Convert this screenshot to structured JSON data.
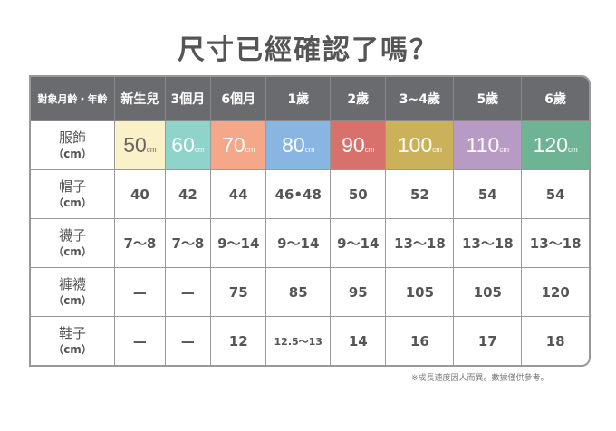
{
  "title": "尺寸已經確認了嗎？",
  "header": [
    "對象月齡・年齡",
    "新生兒",
    "3個月",
    "6個月",
    "1歲",
    "2歲",
    "3~4歲",
    "5歲",
    "6歲"
  ],
  "clothing": {
    "label": "服飾",
    "unit": "（cm）",
    "sizes": [
      "50",
      "60",
      "70",
      "80",
      "90",
      "100",
      "110",
      "120"
    ],
    "size_unit": "cm",
    "colors": [
      "#fbf1c9",
      "#8fd3cb",
      "#f5a78a",
      "#89b5e2",
      "#d8716b",
      "#cbb25a",
      "#b89bc4",
      "#6db394"
    ]
  },
  "rows": [
    {
      "label": "帽子",
      "unit": "（cm）",
      "values": [
        "40",
        "42",
        "44",
        "46•48",
        "50",
        "52",
        "54",
        "54"
      ]
    },
    {
      "label": "襪子",
      "unit": "（cm）",
      "values": [
        "7～8",
        "7～8",
        "9～14",
        "9～14",
        "9～14",
        "13～18",
        "13～18",
        "13～18"
      ]
    },
    {
      "label": "褲襪",
      "unit": "（cm）",
      "values": [
        "—",
        "—",
        "75",
        "85",
        "95",
        "105",
        "105",
        "120"
      ]
    },
    {
      "label": "鞋子",
      "unit": "（cm）",
      "values": [
        "—",
        "—",
        "12",
        "12.5～13",
        "14",
        "16",
        "17",
        "18"
      ]
    }
  ],
  "note": "※成長速度因人而異。數據僅供參考。"
}
